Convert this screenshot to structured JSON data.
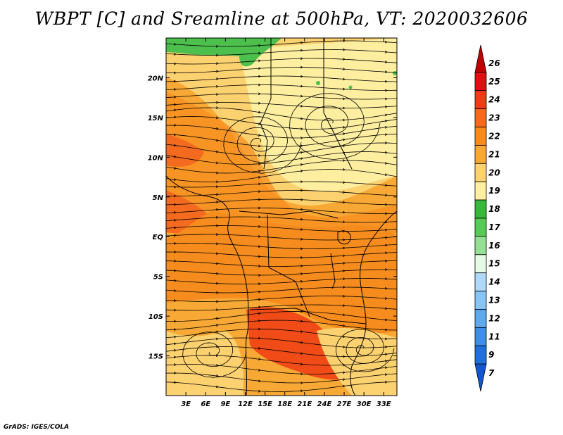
{
  "title": "WBPT [C] and Sreamline at 500hPa, VT: 2020032606",
  "credit": "GrADS: IGES/COLA",
  "map": {
    "lon_labels": [
      "3E",
      "6E",
      "9E",
      "12E",
      "15E",
      "18E",
      "21E",
      "24E",
      "27E",
      "30E",
      "33E"
    ],
    "lat_labels": [
      "20N",
      "15N",
      "10N",
      "5N",
      "EQ",
      "5S",
      "10S",
      "15S"
    ],
    "lon_range": [
      0,
      35
    ],
    "lat_range": [
      -20,
      25
    ]
  },
  "colorbar": {
    "levels": [
      "26",
      "25",
      "24",
      "23",
      "22",
      "21",
      "20",
      "19",
      "18",
      "17",
      "16",
      "15",
      "14",
      "13",
      "12",
      "11",
      "9",
      "7"
    ],
    "colors": [
      "#c00000",
      "#e01010",
      "#f03c14",
      "#f46a1e",
      "#f68c1e",
      "#f8a834",
      "#fcd170",
      "#fef0a0",
      "#38b838",
      "#56cc56",
      "#96e096",
      "#e6fae6",
      "#b0d8f8",
      "#88c4f4",
      "#5ea8ec",
      "#3e8ee4",
      "#2070dc",
      "#1456d0"
    ]
  },
  "colors": {
    "green": "#4cbf4c",
    "light_yellow": "#fdeea0",
    "yellow": "#fcd170",
    "light_orange": "#f8a834",
    "orange": "#f68c1e",
    "dark_orange": "#f46a1e",
    "red_orange": "#f03c14"
  }
}
